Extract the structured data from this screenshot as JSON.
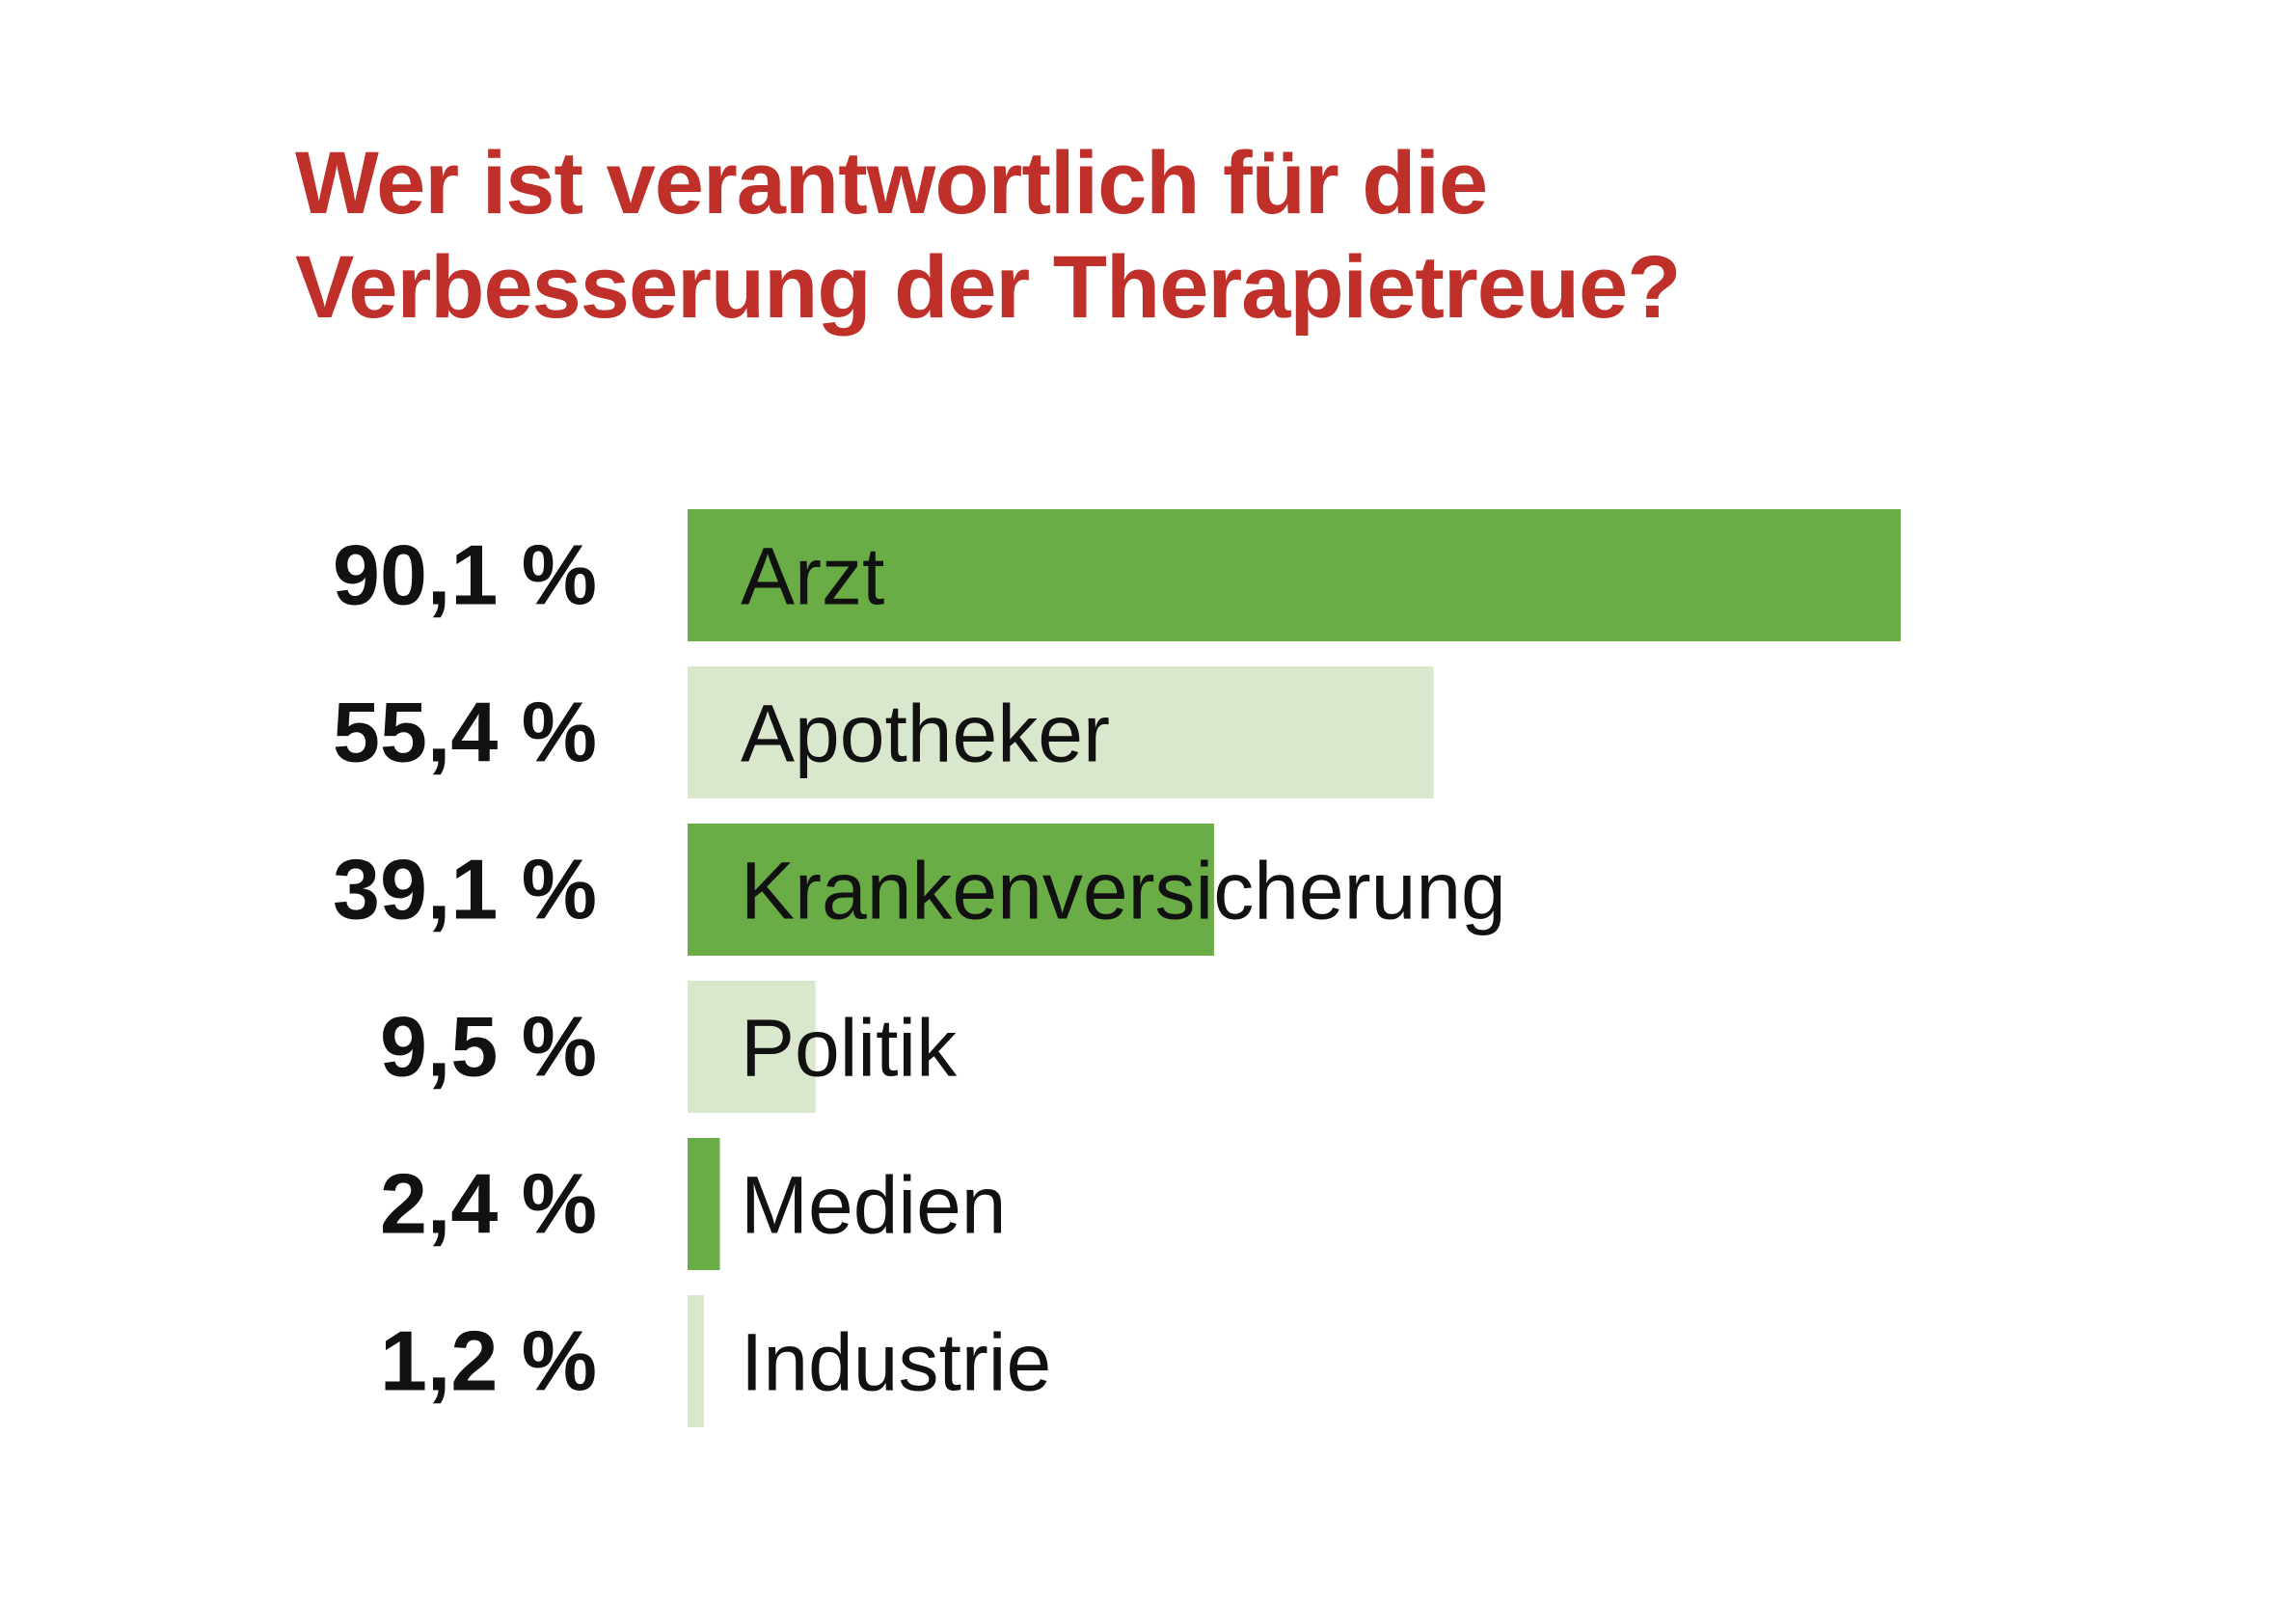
{
  "chart_data": {
    "type": "bar",
    "orientation": "horizontal",
    "title_lines": [
      "Wer ist verantwortlich für die",
      "Verbesserung der Therapietreue?"
    ],
    "categories": [
      "Arzt",
      "Apotheker",
      "Krankenversicherung",
      "Politik",
      "Medien",
      "Industrie"
    ],
    "values": [
      90.1,
      55.4,
      39.1,
      9.5,
      2.4,
      1.2
    ],
    "value_labels": [
      "90,1 %",
      "55,4 %",
      "39,1 %",
      "9,5 %",
      "2,4 %",
      "1,2 %"
    ],
    "unit": "%",
    "xlim": [
      0,
      100
    ],
    "grid": false,
    "legend": "none",
    "bar_colors": [
      "#6aac45",
      "#d9e8cc",
      "#6aac45",
      "#d9e8cc",
      "#6aac45",
      "#d9e8cc"
    ],
    "title_color": "#c0302a"
  }
}
